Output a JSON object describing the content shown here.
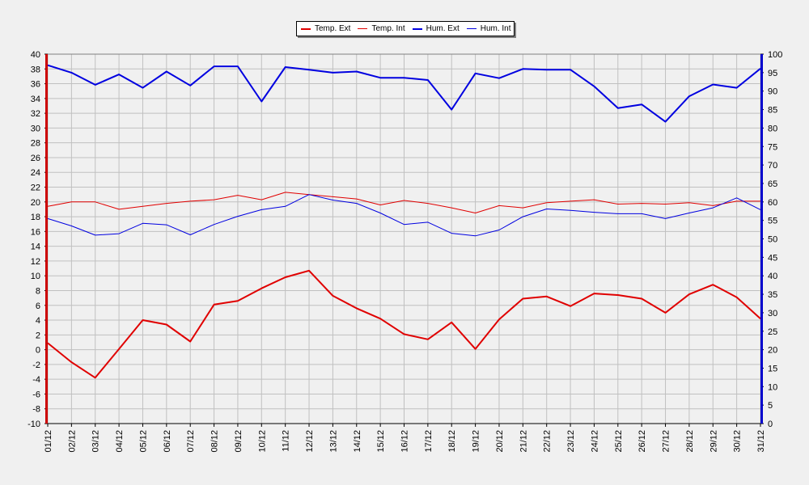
{
  "chart_data": {
    "type": "line",
    "title": "",
    "xlabel": "",
    "ylabel": "",
    "categories": [
      "01/12",
      "02/12",
      "03/12",
      "04/12",
      "05/12",
      "06/12",
      "07/12",
      "08/12",
      "09/12",
      "10/12",
      "11/12",
      "12/12",
      "13/12",
      "14/12",
      "15/12",
      "16/12",
      "17/12",
      "18/12",
      "19/12",
      "20/12",
      "21/12",
      "22/12",
      "23/12",
      "24/12",
      "25/12",
      "26/12",
      "27/12",
      "28/12",
      "29/12",
      "30/12",
      "31/12"
    ],
    "left_axis": {
      "min": -10,
      "max": 40,
      "step": 2,
      "color": "#cc0000"
    },
    "right_axis": {
      "min": 0,
      "max": 100,
      "step": 5,
      "color": "#0000cc"
    },
    "grid": true,
    "legend_position": "top-center",
    "series": [
      {
        "name": "Temp. Ext",
        "axis": "left",
        "color": "#e00000",
        "width": "thick",
        "values": [
          0.9,
          -1.7,
          -3.8,
          0.1,
          4.0,
          3.4,
          1.1,
          6.1,
          6.6,
          8.3,
          9.8,
          10.7,
          7.3,
          5.6,
          4.2,
          2.1,
          1.4,
          3.7,
          0.1,
          4.1,
          6.9,
          7.2,
          5.9,
          7.6,
          7.4,
          6.9,
          5.0,
          7.5,
          8.8,
          7.1,
          4.2
        ]
      },
      {
        "name": "Temp. Int",
        "axis": "left",
        "color": "#e00000",
        "width": "thin",
        "values": [
          19.4,
          20.0,
          20.0,
          19.0,
          19.4,
          19.8,
          20.1,
          20.3,
          20.9,
          20.3,
          21.3,
          21.0,
          20.7,
          20.4,
          19.6,
          20.2,
          19.8,
          19.2,
          18.5,
          19.5,
          19.2,
          19.9,
          20.1,
          20.3,
          19.7,
          19.8,
          19.7,
          19.9,
          19.5,
          20.1,
          20.1
        ]
      },
      {
        "name": "Hum. Ext",
        "axis": "right",
        "color": "#0000e0",
        "width": "thick",
        "values": [
          97.0,
          95.0,
          91.7,
          94.5,
          90.9,
          95.3,
          91.5,
          96.7,
          96.7,
          87.2,
          96.5,
          95.8,
          95.0,
          95.3,
          93.6,
          93.6,
          93.0,
          85.0,
          94.8,
          93.5,
          96.0,
          95.8,
          95.8,
          91.3,
          85.4,
          86.4,
          81.7,
          88.6,
          91.8,
          90.9,
          96.1
        ]
      },
      {
        "name": "Hum. Int",
        "axis": "right",
        "color": "#0000e0",
        "width": "thin",
        "values": [
          55.5,
          53.5,
          51.0,
          51.4,
          54.2,
          53.8,
          51.1,
          53.9,
          56.1,
          57.9,
          58.8,
          62.0,
          60.5,
          59.6,
          57.0,
          53.9,
          54.5,
          51.5,
          50.8,
          52.4,
          56.0,
          58.1,
          57.7,
          57.2,
          56.8,
          56.8,
          55.5,
          57.0,
          58.4,
          61.1,
          57.9
        ]
      }
    ]
  }
}
